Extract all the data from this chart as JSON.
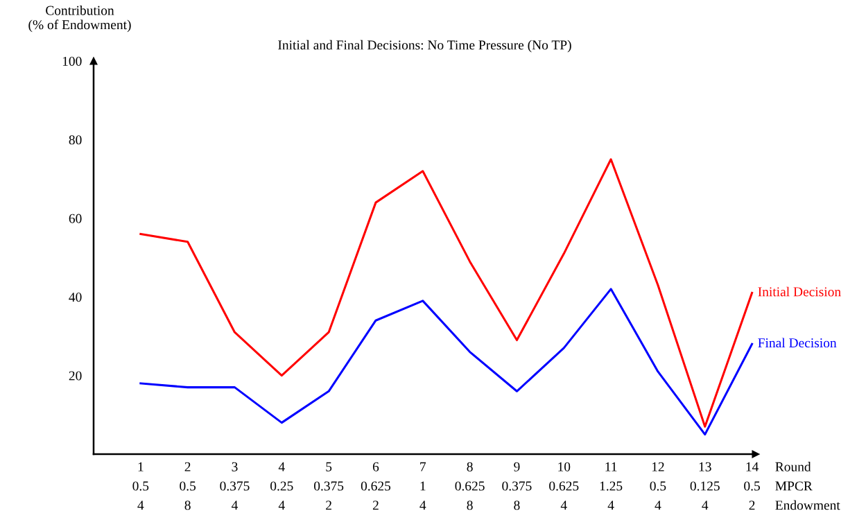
{
  "chart_data": {
    "type": "line",
    "title": "Initial and Final Decisions: No Time Pressure (No TP)",
    "ylabel": "Contribution\n(% of Endowment)",
    "xlabel": "Round\nMPCR\nEndowment",
    "categories": [
      "1\n0.5\n4",
      "2\n0.5\n8",
      "3\n0.375\n4",
      "4\n0.25\n4",
      "5\n0.375\n2",
      "6\n0.625\n2",
      "7\n1\n4",
      "8\n0.625\n8",
      "9\n0.375\n8",
      "10\n0.625\n4",
      "11\n1.25\n4",
      "12\n0.5\n4",
      "13\n0.125\n4",
      "14\n0.5\n2"
    ],
    "series": [
      {
        "name": "Initial Decision",
        "color": "#ff0000",
        "values": [
          56,
          54,
          31,
          20,
          31,
          64,
          72,
          49,
          29,
          51,
          75,
          43,
          7,
          41
        ]
      },
      {
        "name": "Final Decision",
        "color": "#0000ff",
        "values": [
          18,
          17,
          17,
          8,
          16,
          34,
          39,
          26,
          16,
          27,
          42,
          21,
          5,
          28
        ]
      }
    ],
    "ylim": [
      0,
      100
    ],
    "yticks": [
      20,
      40,
      60,
      80,
      100
    ],
    "grid": false,
    "legend": false,
    "marker": "none",
    "line_style": "solid"
  }
}
